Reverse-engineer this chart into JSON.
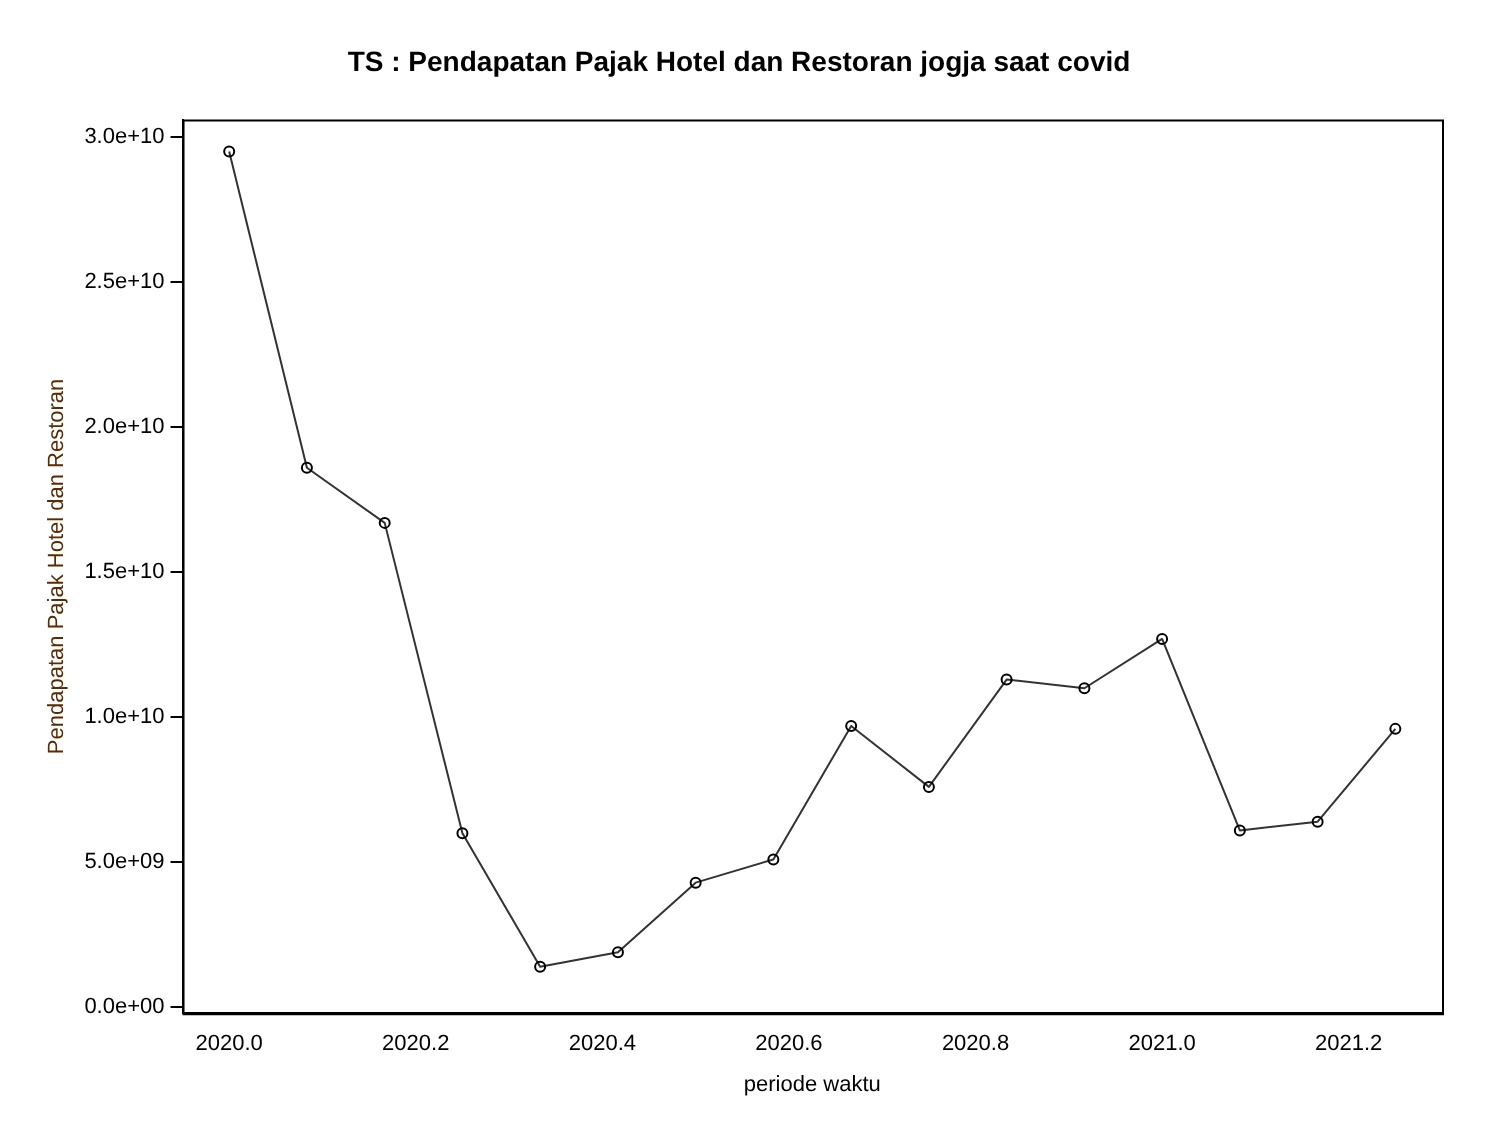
{
  "chart_data": {
    "type": "line",
    "title": "TS : Pendapatan Pajak Hotel dan Restoran jogja saat covid",
    "xlabel": "periode waktu",
    "ylabel": "Pendapatan Pajak Hotel dan Restoran",
    "x": [
      2020.0,
      2020.0833,
      2020.1667,
      2020.25,
      2020.3333,
      2020.4167,
      2020.5,
      2020.5833,
      2020.6667,
      2020.75,
      2020.8333,
      2020.9167,
      2021.0,
      2021.0833,
      2021.1667,
      2021.25
    ],
    "series": [
      {
        "color": "#333333",
        "values": [
          29500000000.0,
          18600000000.0,
          16700000000.0,
          6000000000.0,
          1400000000.0,
          1900000000.0,
          4300000000.0,
          5100000000.0,
          9700000000.0,
          7600000000.0,
          11300000000.0,
          11000000000.0,
          12700000000.0,
          6100000000.0,
          6400000000.0,
          9600000000.0
        ]
      }
    ],
    "xlim": [
      2019.95,
      2021.3
    ],
    "ylim": [
      -200000000.0,
      30600000000.0
    ],
    "xticks": [
      {
        "value": 2020.0,
        "label": "2020.0"
      },
      {
        "value": 2020.2,
        "label": "2020.2"
      },
      {
        "value": 2020.4,
        "label": "2020.4"
      },
      {
        "value": 2020.6,
        "label": "2020.6"
      },
      {
        "value": 2020.8,
        "label": "2020.8"
      },
      {
        "value": 2021.0,
        "label": "2021.0"
      },
      {
        "value": 2021.2,
        "label": "2021.2"
      }
    ],
    "yticks": [
      {
        "value": 0,
        "label": "0.0e+00"
      },
      {
        "value": 5000000000.0,
        "label": "5.0e+09"
      },
      {
        "value": 10000000000.0,
        "label": "1.0e+10"
      },
      {
        "value": 15000000000.0,
        "label": "1.5e+10"
      },
      {
        "value": 20000000000.0,
        "label": "2.0e+10"
      },
      {
        "value": 25000000000.0,
        "label": "2.5e+10"
      },
      {
        "value": 30000000000.0,
        "label": "3.0e+10"
      }
    ],
    "grid": false,
    "legend": false,
    "marker": "circle",
    "line_style": "solid"
  }
}
